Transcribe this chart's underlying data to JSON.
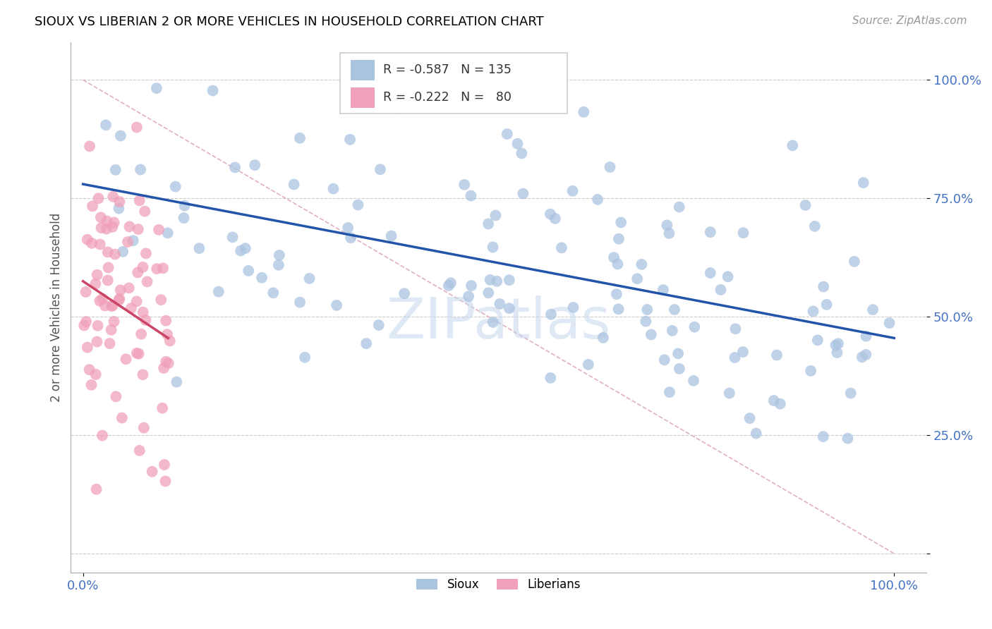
{
  "title": "SIOUX VS LIBERIAN 2 OR MORE VEHICLES IN HOUSEHOLD CORRELATION CHART",
  "source": "Source: ZipAtlas.com",
  "ylabel": "2 or more Vehicles in Household",
  "watermark": "ZIPatlas",
  "sioux_R": -0.587,
  "sioux_N": 135,
  "liberian_R": -0.222,
  "liberian_N": 80,
  "sioux_color": "#aac4e0",
  "sioux_edge_color": "#aac4e0",
  "sioux_line_color": "#2255aa",
  "liberian_color": "#f0a0b8",
  "liberian_edge_color": "#f0a0b8",
  "liberian_line_color": "#cc4466",
  "diagonal_color": "#e0b0c0",
  "background_color": "#ffffff",
  "grid_color": "#cccccc",
  "ytick_color": "#4472c4",
  "xtick_color": "#4472c4",
  "title_fontsize": 13,
  "source_fontsize": 11,
  "tick_fontsize": 13,
  "ylabel_fontsize": 12,
  "legend_fontsize": 12,
  "sioux_line_start_x": 0.0,
  "sioux_line_start_y": 0.78,
  "sioux_line_end_x": 1.0,
  "sioux_line_end_y": 0.455,
  "liberian_line_start_x": 0.0,
  "liberian_line_start_y": 0.575,
  "liberian_line_end_x": 0.105,
  "liberian_line_end_y": 0.455,
  "xlim_min": -0.015,
  "xlim_max": 1.04,
  "ylim_min": -0.04,
  "ylim_max": 1.08
}
